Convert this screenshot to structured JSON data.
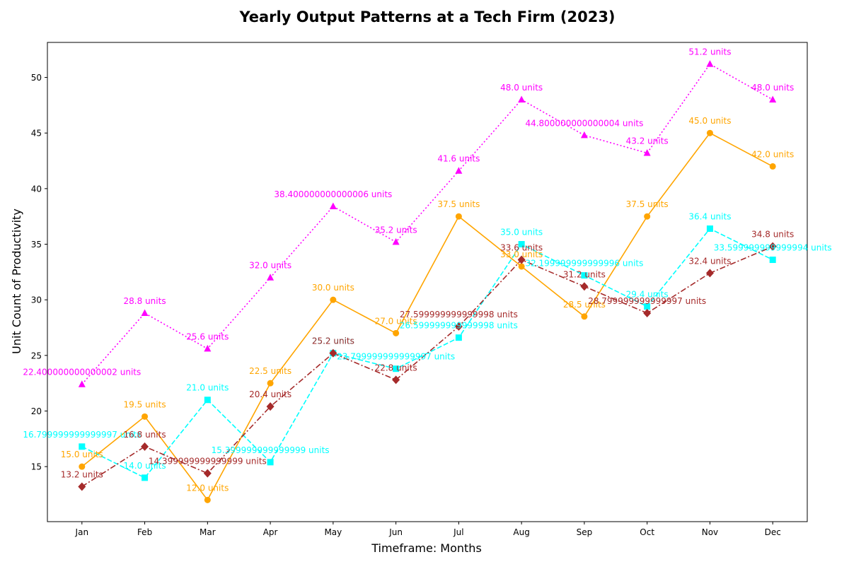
{
  "chart_data": {
    "type": "line",
    "title": "Yearly Output Patterns at a Tech Firm (2023)",
    "xlabel": "Timeframe: Months",
    "ylabel": "Unit Count of Productivity",
    "categories": [
      "Jan",
      "Feb",
      "Mar",
      "Apr",
      "May",
      "Jun",
      "Jul",
      "Aug",
      "Sep",
      "Oct",
      "Nov",
      "Dec"
    ],
    "ylim": [
      10.05,
      53.15
    ],
    "yticks": [
      15,
      20,
      25,
      30,
      35,
      40,
      45,
      50
    ],
    "grid": false,
    "legend": "none",
    "series": [
      {
        "color": "#ffa500",
        "line_style": "solid",
        "marker": "circle",
        "values": [
          15.0,
          19.5,
          12.0,
          22.5,
          30.0,
          27.0,
          37.5,
          33.0,
          28.5,
          37.5,
          45.0,
          42.0
        ],
        "labels": [
          "15.0 units",
          "19.5 units",
          "12.0 units",
          "22.5 units",
          "30.0 units",
          "27.0 units",
          "37.5 units",
          "33.0 units",
          "28.5 units",
          "37.5 units",
          "45.0 units",
          "42.0 units"
        ]
      },
      {
        "color": "#00ffff",
        "line_style": "dashed",
        "marker": "square",
        "values": [
          16.8,
          14.0,
          21.0,
          15.4,
          25.2,
          23.8,
          26.6,
          35.0,
          32.2,
          29.4,
          36.4,
          33.6
        ],
        "labels": [
          "16.799999999999997 units",
          "14.0 units",
          "21.0 units",
          "15.399999999999999 units",
          "25.2 units",
          "23.799999999999997 units",
          "26.599999999999998 units",
          "35.0 units",
          "32.199999999999996 units",
          "29.4 units",
          "36.4 units",
          "33.599999999999994 units"
        ]
      },
      {
        "color": "#a52a2a",
        "line_style": "dashdot",
        "marker": "diamond",
        "values": [
          13.2,
          16.8,
          14.4,
          20.4,
          25.2,
          22.8,
          27.6,
          33.6,
          31.2,
          28.8,
          32.4,
          34.8
        ],
        "labels": [
          "13.2 units",
          "16.8 units",
          "14.399999999999999 units",
          "20.4 units",
          "25.2 units",
          "22.8 units",
          "27.599999999999998 units",
          "33.6 units",
          "31.2 units",
          "28.799999999999997 units",
          "32.4 units",
          "34.8 units"
        ]
      },
      {
        "color": "#ff00ff",
        "line_style": "dotted",
        "marker": "triangle",
        "values": [
          22.4,
          28.8,
          25.6,
          32.0,
          38.4,
          35.2,
          41.6,
          48.0,
          44.8,
          43.2,
          51.2,
          48.0
        ],
        "labels": [
          "22.400000000000002 units",
          "28.8 units",
          "25.6 units",
          "32.0 units",
          "38.400000000000006 units",
          "35.2 units",
          "41.6 units",
          "48.0 units",
          "44.800000000000004 units",
          "43.2 units",
          "51.2 units",
          "48.0 units"
        ]
      }
    ]
  }
}
